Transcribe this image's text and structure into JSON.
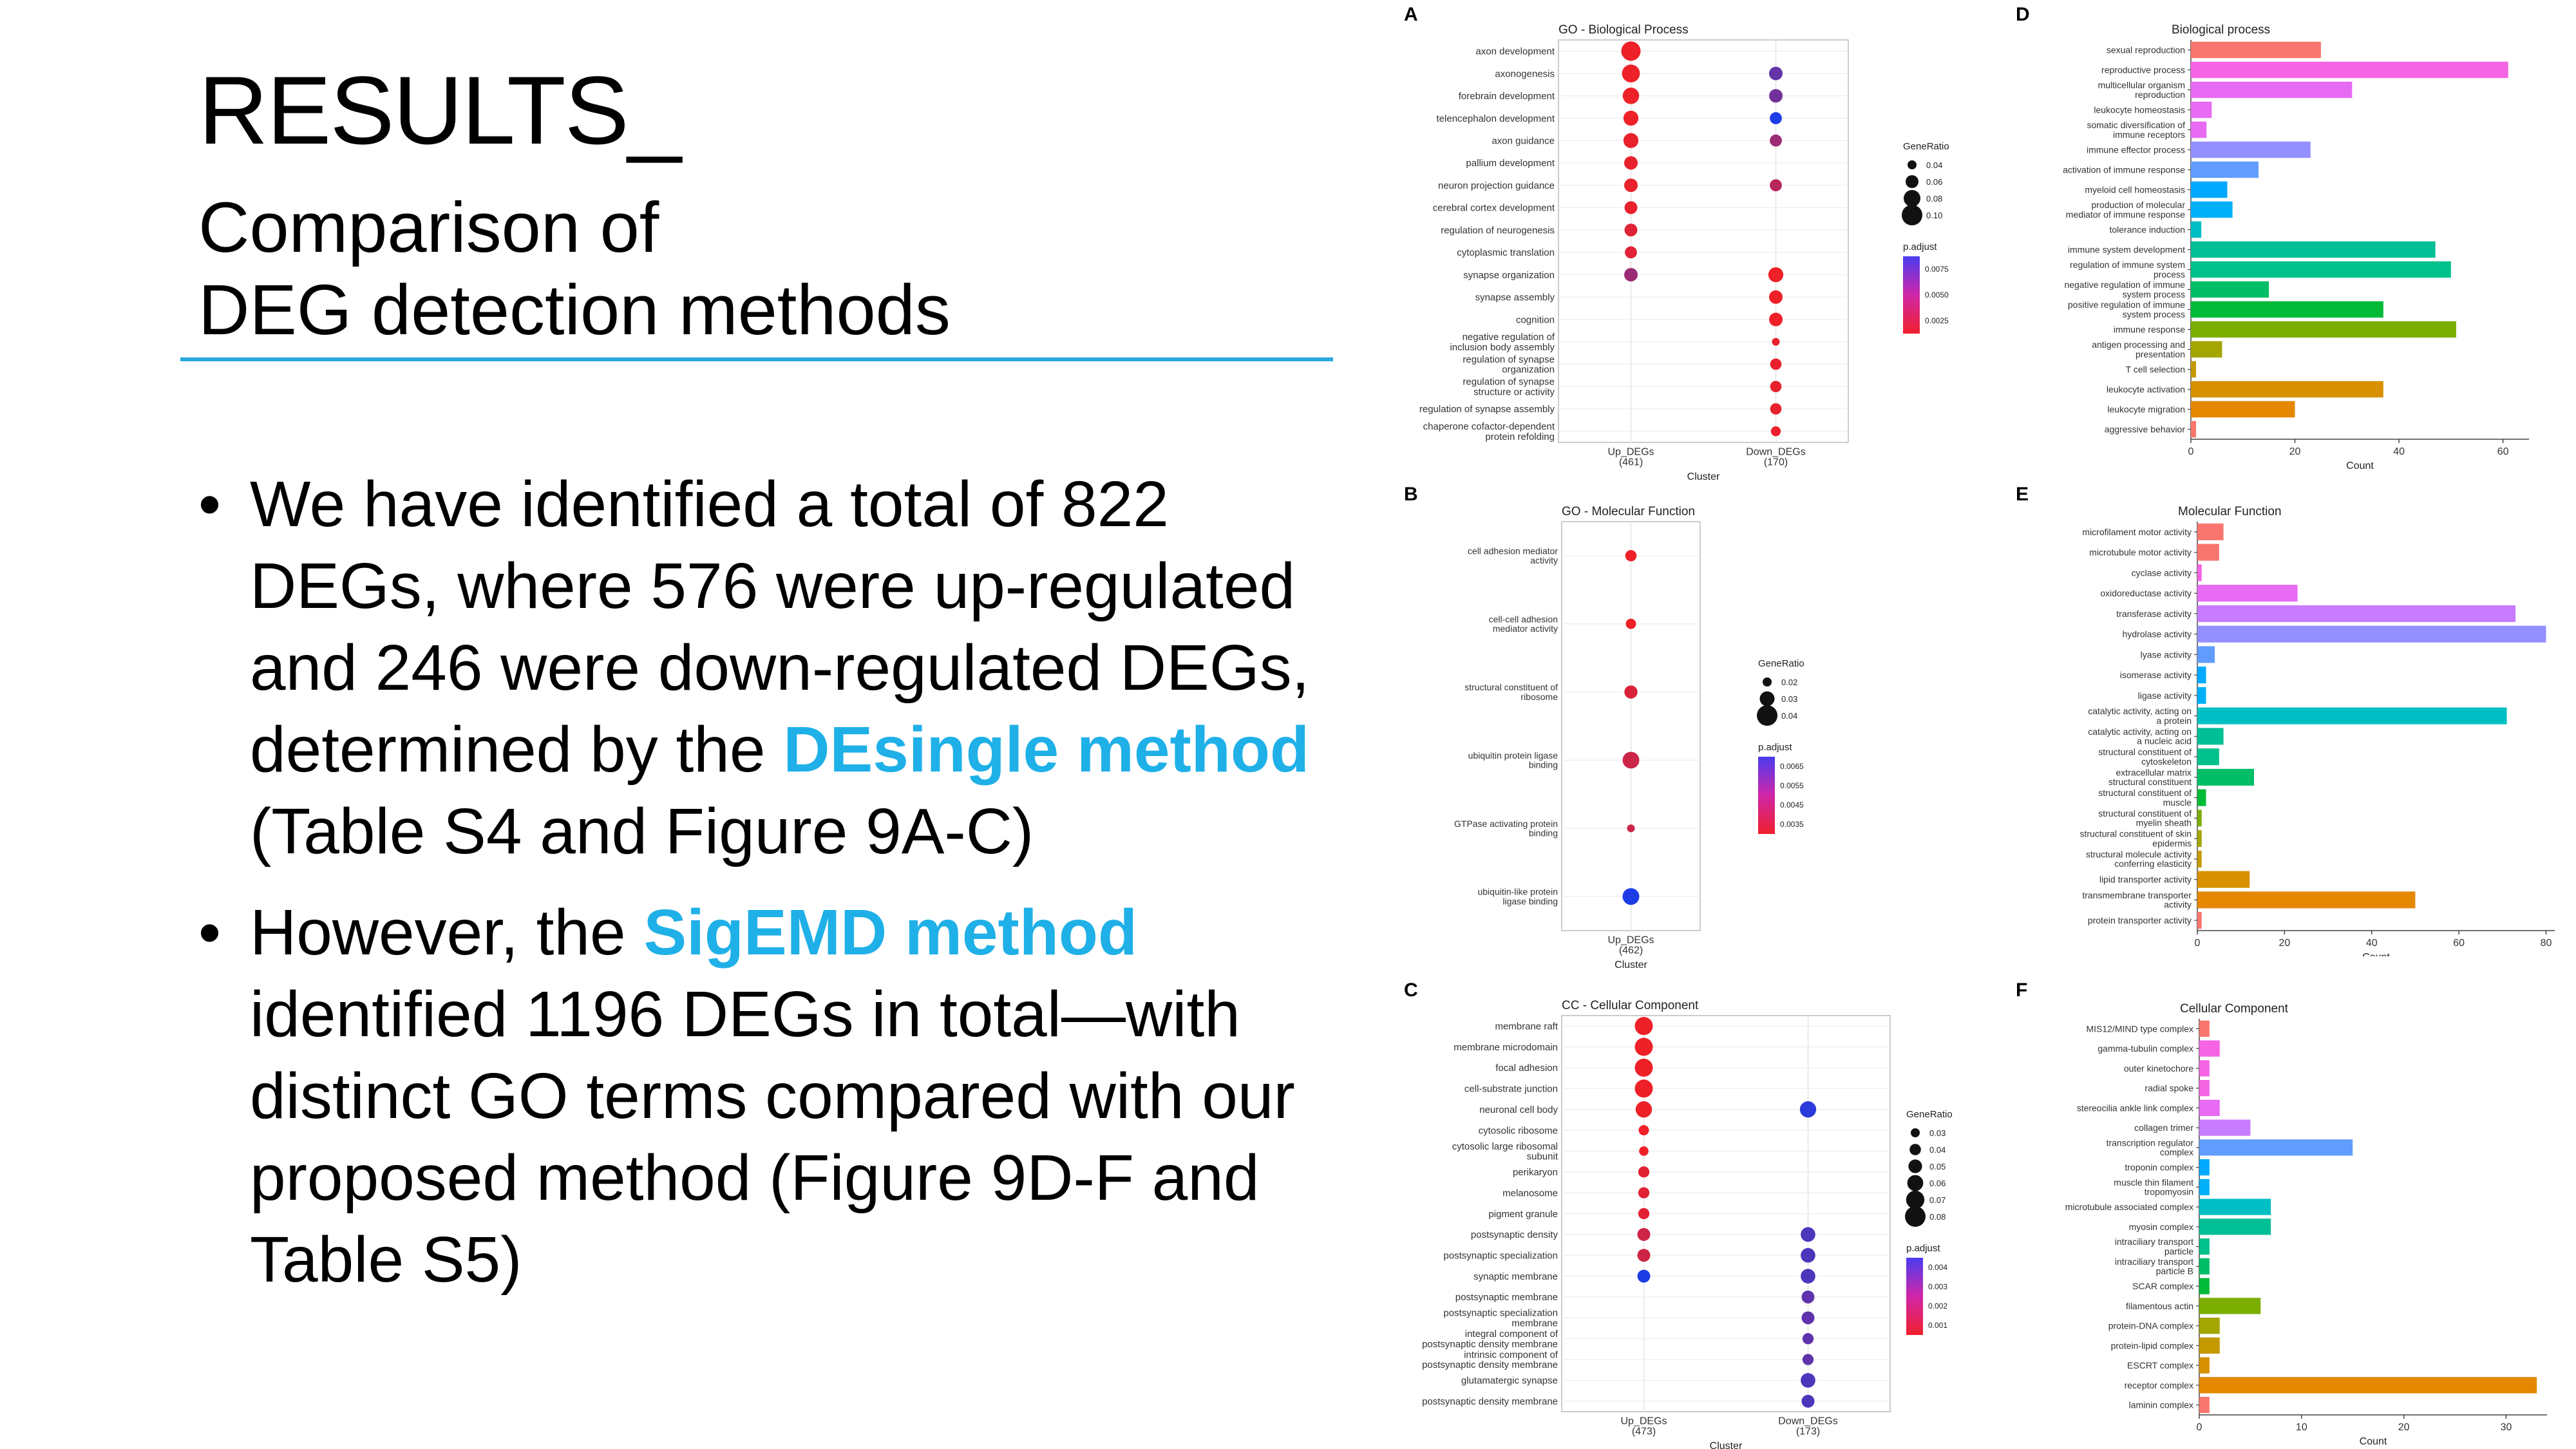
{
  "slide": {
    "title_line1": "RESULTS_",
    "title_line2": "Comparison of",
    "title_line3": "DEG detection methods",
    "bullet_char": "•",
    "bullet1": {
      "part1": "We have identified a total of 822 DEGs, where 576 were up-regulated and 246 were down-regulated DEGs, determined by the ",
      "highlight": "DEsingle method",
      "part2": " (Table S4 and Figure 9A-C)"
    },
    "bullet2": {
      "part1": "However, the ",
      "highlight": "SigEMD method",
      "part2": " identified 1196 DEGs in total—with distinct GO terms compared with our proposed method (Figure 9D-F and Table S5)"
    },
    "accent_color": "#29A8E0",
    "highlight_color": "#1FB0E8"
  },
  "chart_data": [
    {
      "panel": "A",
      "type": "scatter",
      "title": "GO - Biological Process",
      "xlabel": "Cluster",
      "ylabel": "",
      "categories": [
        "axon development",
        "axonogenesis",
        "forebrain development",
        "telencephalon development",
        "axon guidance",
        "pallium development",
        "neuron projection guidance",
        "cerebral cortex development",
        "regulation of neurogenesis",
        "cytoplasmic translation",
        "synapse organization",
        "synapse assembly",
        "cognition",
        "negative regulation of inclusion body assembly",
        "regulation of synapse organization",
        "regulation of synapse structure or activity",
        "regulation of synapse assembly",
        "chaperone cofactor-dependent protein refolding"
      ],
      "clusters": [
        "Up_DEGs\n(461)",
        "Down_DEGs\n(170)"
      ],
      "points": [
        {
          "term": 0,
          "cluster": 0,
          "ratio": 0.1,
          "padj": 0.001
        },
        {
          "term": 1,
          "cluster": 0,
          "ratio": 0.09,
          "padj": 0.001
        },
        {
          "term": 1,
          "cluster": 1,
          "ratio": 0.06,
          "padj": 0.006
        },
        {
          "term": 2,
          "cluster": 0,
          "ratio": 0.08,
          "padj": 0.001
        },
        {
          "term": 2,
          "cluster": 1,
          "ratio": 0.06,
          "padj": 0.0055
        },
        {
          "term": 3,
          "cluster": 0,
          "ratio": 0.07,
          "padj": 0.001
        },
        {
          "term": 3,
          "cluster": 1,
          "ratio": 0.05,
          "padj": 0.0085
        },
        {
          "term": 4,
          "cluster": 0,
          "ratio": 0.07,
          "padj": 0.0012
        },
        {
          "term": 4,
          "cluster": 1,
          "ratio": 0.05,
          "padj": 0.004
        },
        {
          "term": 5,
          "cluster": 0,
          "ratio": 0.06,
          "padj": 0.0012
        },
        {
          "term": 6,
          "cluster": 0,
          "ratio": 0.06,
          "padj": 0.0012
        },
        {
          "term": 6,
          "cluster": 1,
          "ratio": 0.05,
          "padj": 0.003
        },
        {
          "term": 7,
          "cluster": 0,
          "ratio": 0.055,
          "padj": 0.0012
        },
        {
          "term": 8,
          "cluster": 0,
          "ratio": 0.055,
          "padj": 0.0015
        },
        {
          "term": 9,
          "cluster": 0,
          "ratio": 0.05,
          "padj": 0.0015
        },
        {
          "term": 10,
          "cluster": 0,
          "ratio": 0.06,
          "padj": 0.004
        },
        {
          "term": 10,
          "cluster": 1,
          "ratio": 0.07,
          "padj": 0.001
        },
        {
          "term": 11,
          "cluster": 1,
          "ratio": 0.06,
          "padj": 0.001
        },
        {
          "term": 12,
          "cluster": 1,
          "ratio": 0.06,
          "padj": 0.001
        },
        {
          "term": 13,
          "cluster": 1,
          "ratio": 0.02,
          "padj": 0.0012
        },
        {
          "term": 14,
          "cluster": 1,
          "ratio": 0.045,
          "padj": 0.0012
        },
        {
          "term": 15,
          "cluster": 1,
          "ratio": 0.045,
          "padj": 0.0012
        },
        {
          "term": 16,
          "cluster": 1,
          "ratio": 0.045,
          "padj": 0.0012
        },
        {
          "term": 17,
          "cluster": 1,
          "ratio": 0.035,
          "padj": 0.0012
        }
      ],
      "legend": {
        "size_title": "GeneRatio",
        "size_breaks": [
          "0.04",
          "0.06",
          "0.08",
          "0.10"
        ],
        "color_title": "p.adjust",
        "color_breaks": [
          "0.0075",
          "0.0050",
          "0.0025"
        ]
      }
    },
    {
      "panel": "B",
      "type": "scatter",
      "title": "GO - Molecular Function",
      "xlabel": "Cluster",
      "ylabel": "",
      "categories": [
        "cell adhesion mediator activity",
        "cell-cell adhesion mediator activity",
        "structural constituent of ribosome",
        "ubiquitin protein ligase binding",
        "GTPase activating protein binding",
        "ubiquitin-like protein ligase binding"
      ],
      "clusters": [
        "Up_DEGs\n(462)"
      ],
      "points": [
        {
          "term": 0,
          "cluster": 0,
          "ratio": 0.025,
          "padj": 0.0035
        },
        {
          "term": 1,
          "cluster": 0,
          "ratio": 0.022,
          "padj": 0.0035
        },
        {
          "term": 2,
          "cluster": 0,
          "ratio": 0.03,
          "padj": 0.0038
        },
        {
          "term": 3,
          "cluster": 0,
          "ratio": 0.04,
          "padj": 0.004
        },
        {
          "term": 4,
          "cluster": 0,
          "ratio": 0.015,
          "padj": 0.004
        },
        {
          "term": 5,
          "cluster": 0,
          "ratio": 0.04,
          "padj": 0.0065
        }
      ],
      "legend": {
        "size_title": "GeneRatio",
        "size_breaks": [
          "0.02",
          "0.03",
          "0.04"
        ],
        "color_title": "p.adjust",
        "color_breaks": [
          "0.0065",
          "0.0055",
          "0.0045",
          "0.0035"
        ]
      }
    },
    {
      "panel": "C",
      "type": "scatter",
      "title": "CC - Cellular Component",
      "xlabel": "Cluster",
      "ylabel": "",
      "categories": [
        "membrane raft",
        "membrane microdomain",
        "focal adhesion",
        "cell-substrate junction",
        "neuronal cell body",
        "cytosolic ribosome",
        "cytosolic large ribosomal subunit",
        "perikaryon",
        "melanosome",
        "pigment granule",
        "postsynaptic density",
        "postsynaptic specialization",
        "synaptic membrane",
        "postsynaptic membrane",
        "postsynaptic specialization membrane",
        "integral component of postsynaptic density membrane",
        "intrinsic component of postsynaptic density membrane",
        "glutamatergic synapse",
        "postsynaptic density membrane"
      ],
      "clusters": [
        "Up_DEGs\n(473)",
        "Down_DEGs\n(173)"
      ],
      "points": [
        {
          "term": 0,
          "cluster": 0,
          "ratio": 0.08,
          "padj": 0.001
        },
        {
          "term": 1,
          "cluster": 0,
          "ratio": 0.08,
          "padj": 0.001
        },
        {
          "term": 2,
          "cluster": 0,
          "ratio": 0.08,
          "padj": 0.001
        },
        {
          "term": 3,
          "cluster": 0,
          "ratio": 0.08,
          "padj": 0.001
        },
        {
          "term": 4,
          "cluster": 0,
          "ratio": 0.07,
          "padj": 0.001
        },
        {
          "term": 4,
          "cluster": 1,
          "ratio": 0.07,
          "padj": 0.004
        },
        {
          "term": 5,
          "cluster": 0,
          "ratio": 0.035,
          "padj": 0.001
        },
        {
          "term": 6,
          "cluster": 0,
          "ratio": 0.03,
          "padj": 0.001
        },
        {
          "term": 7,
          "cluster": 0,
          "ratio": 0.04,
          "padj": 0.0012
        },
        {
          "term": 8,
          "cluster": 0,
          "ratio": 0.04,
          "padj": 0.0012
        },
        {
          "term": 9,
          "cluster": 0,
          "ratio": 0.04,
          "padj": 0.0012
        },
        {
          "term": 10,
          "cluster": 0,
          "ratio": 0.05,
          "padj": 0.0015
        },
        {
          "term": 10,
          "cluster": 1,
          "ratio": 0.06,
          "padj": 0.0035
        },
        {
          "term": 11,
          "cluster": 0,
          "ratio": 0.05,
          "padj": 0.0015
        },
        {
          "term": 11,
          "cluster": 1,
          "ratio": 0.06,
          "padj": 0.0035
        },
        {
          "term": 12,
          "cluster": 0,
          "ratio": 0.05,
          "padj": 0.0042
        },
        {
          "term": 12,
          "cluster": 1,
          "ratio": 0.06,
          "padj": 0.0035
        },
        {
          "term": 13,
          "cluster": 1,
          "ratio": 0.05,
          "padj": 0.0032
        },
        {
          "term": 14,
          "cluster": 1,
          "ratio": 0.05,
          "padj": 0.0032
        },
        {
          "term": 15,
          "cluster": 1,
          "ratio": 0.04,
          "padj": 0.0032
        },
        {
          "term": 16,
          "cluster": 1,
          "ratio": 0.04,
          "padj": 0.0032
        },
        {
          "term": 17,
          "cluster": 1,
          "ratio": 0.06,
          "padj": 0.0035
        },
        {
          "term": 18,
          "cluster": 1,
          "ratio": 0.05,
          "padj": 0.0035
        }
      ],
      "legend": {
        "size_title": "GeneRatio",
        "size_breaks": [
          "0.03",
          "0.04",
          "0.05",
          "0.06",
          "0.07",
          "0.08"
        ],
        "color_title": "p.adjust",
        "color_breaks": [
          "0.004",
          "0.003",
          "0.002",
          "0.001"
        ]
      }
    },
    {
      "panel": "D",
      "type": "bar",
      "orientation": "horizontal",
      "title": "Biological process",
      "xlabel": "Count",
      "ylabel": "",
      "xlim": [
        0,
        65
      ],
      "xticks": [
        "0",
        "20",
        "40",
        "60"
      ],
      "categories": [
        "sexual reproduction",
        "reproductive process",
        "multicellular organism reproduction",
        "leukocyte homeostasis",
        "somatic diversification of immune receptors",
        "immune effector process",
        "activation of immune response",
        "myeloid cell homeostasis",
        "production of molecular mediator of immune response",
        "tolerance induction",
        "immune system development",
        "regulation of immune system process",
        "negative regulation of immune system process",
        "positive regulation of immune system process",
        "immune response",
        "antigen processing and presentation",
        "T cell selection",
        "leukocyte activation",
        "leukocyte migration",
        "aggressive behavior"
      ],
      "values": [
        25,
        61,
        31,
        4,
        3,
        23,
        13,
        7,
        8,
        2,
        47,
        50,
        15,
        37,
        51,
        6,
        1,
        37,
        20,
        1
      ],
      "colors": [
        "#F8766D",
        "#F564E3",
        "#E76BF3",
        "#E76BF3",
        "#E76BF3",
        "#9590FF",
        "#619CFF",
        "#00A9FF",
        "#00B0F6",
        "#00BFC4",
        "#00BF96",
        "#00C08B",
        "#00BE67",
        "#00BA38",
        "#7CAE00",
        "#A3A500",
        "#C49A00",
        "#D89000",
        "#E58700",
        "#F8766D"
      ]
    },
    {
      "panel": "E",
      "type": "bar",
      "orientation": "horizontal",
      "title": "Molecular Function",
      "xlabel": "Count",
      "ylabel": "",
      "xlim": [
        0,
        82
      ],
      "xticks": [
        "0",
        "20",
        "40",
        "60",
        "80"
      ],
      "categories": [
        "microfilament motor activity",
        "microtubule motor activity",
        "cyclase activity",
        "oxidoreductase activity",
        "transferase activity",
        "hydrolase activity",
        "lyase activity",
        "isomerase activity",
        "ligase activity",
        "catalytic activity, acting on a protein",
        "catalytic activity, acting on a nucleic acid",
        "structural constituent of cytoskeleton",
        "extracellular matrix structural constituent",
        "structural constituent of muscle",
        "structural constituent of myelin sheath",
        "structural constituent of skin epidermis",
        "structural molecule activity conferring elasticity",
        "lipid transporter activity",
        "transmembrane transporter activity",
        "protein transporter activity"
      ],
      "values": [
        6,
        5,
        1,
        23,
        73,
        80,
        4,
        2,
        2,
        71,
        6,
        5,
        13,
        2,
        1,
        1,
        1,
        12,
        50,
        1
      ],
      "colors": [
        "#F8766D",
        "#F8766D",
        "#F564E3",
        "#E76BF3",
        "#C77CFF",
        "#9590FF",
        "#619CFF",
        "#00A9FF",
        "#00B0F6",
        "#00BFC4",
        "#00BF96",
        "#00C08B",
        "#00BE67",
        "#00BA38",
        "#7CAE00",
        "#A3A500",
        "#C49A00",
        "#D89000",
        "#E58700",
        "#F8766D"
      ]
    },
    {
      "panel": "F",
      "type": "bar",
      "orientation": "horizontal",
      "title": "Cellular Component",
      "xlabel": "Count",
      "ylabel": "",
      "xlim": [
        0,
        34
      ],
      "xticks": [
        "0",
        "10",
        "20",
        "30"
      ],
      "categories": [
        "MIS12/MIND type complex",
        "gamma-tubulin complex",
        "outer kinetochore",
        "radial spoke",
        "stereocilia ankle link complex",
        "collagen trimer",
        "transcription regulator complex",
        "troponin complex",
        "muscle thin filament tropomyosin",
        "microtubule associated complex",
        "myosin complex",
        "intraciliary transport particle",
        "intraciliary transport particle B",
        "SCAR complex",
        "filamentous actin",
        "protein-DNA complex",
        "protein-lipid complex",
        "ESCRT complex",
        "receptor complex",
        "laminin complex"
      ],
      "values": [
        1,
        2,
        1,
        1,
        2,
        5,
        15,
        1,
        1,
        7,
        7,
        1,
        1,
        1,
        6,
        2,
        2,
        1,
        33,
        1
      ],
      "colors": [
        "#F8766D",
        "#F564E3",
        "#F564E3",
        "#F564E3",
        "#E76BF3",
        "#C77CFF",
        "#619CFF",
        "#00A9FF",
        "#00B0F6",
        "#00BFC4",
        "#00BF96",
        "#00C08B",
        "#00BE67",
        "#00BA38",
        "#7CAE00",
        "#A3A500",
        "#C49A00",
        "#D89000",
        "#E58700",
        "#F8766D"
      ]
    }
  ]
}
